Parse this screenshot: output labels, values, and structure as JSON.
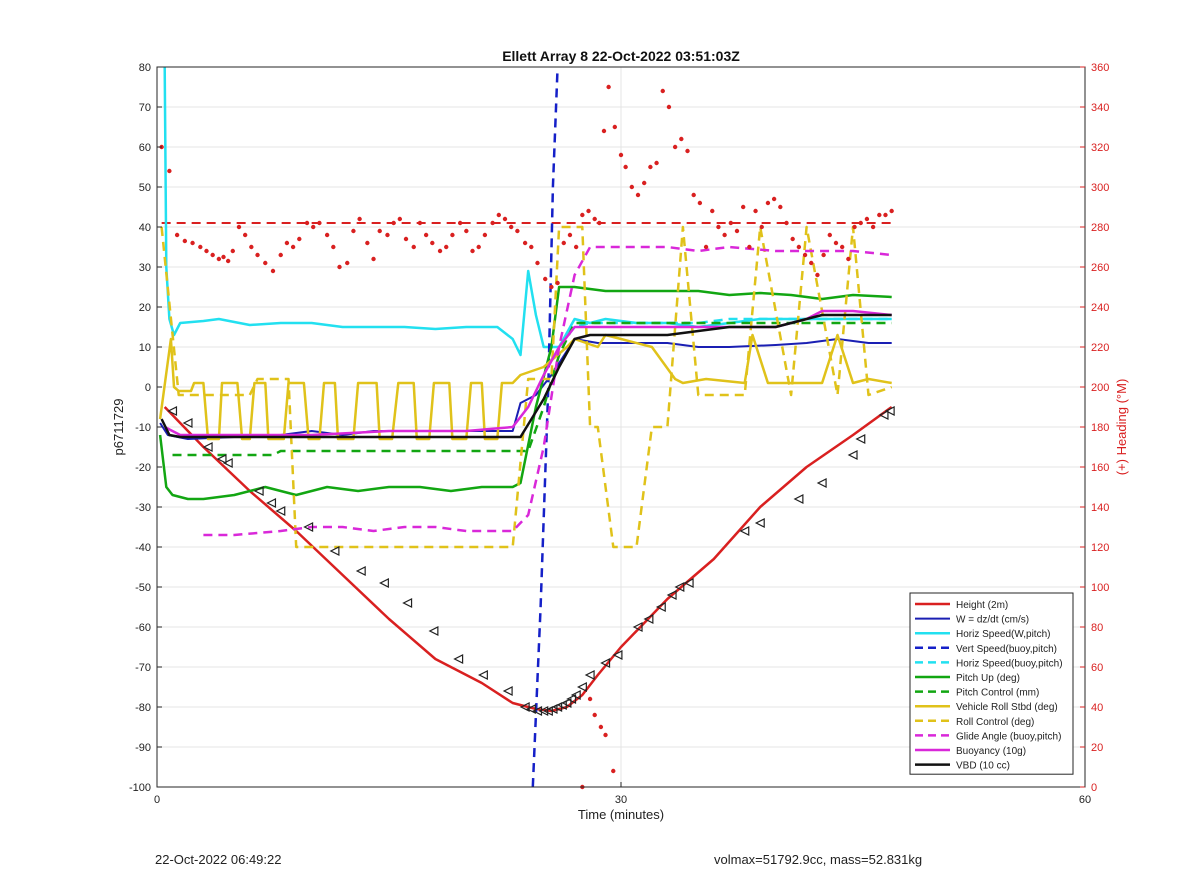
{
  "chart_data": {
    "type": "line",
    "title": "Ellett Array 8 22-Oct-2022 03:51:03Z",
    "xlabel": "Time (minutes)",
    "ylabel": "p6711729",
    "y2label": "(+) Heading (°M)",
    "xlim": [
      0,
      60
    ],
    "ylim": [
      -100,
      80
    ],
    "y2lim": [
      0,
      360
    ],
    "xticks": [
      0,
      30,
      60
    ],
    "yticks": [
      -100,
      -90,
      -80,
      -70,
      -60,
      -50,
      -40,
      -30,
      -20,
      -10,
      0,
      10,
      20,
      30,
      40,
      50,
      60,
      70,
      80
    ],
    "y2ticks": [
      0,
      20,
      40,
      60,
      80,
      100,
      120,
      140,
      160,
      180,
      200,
      220,
      240,
      260,
      280,
      300,
      320,
      340,
      360
    ],
    "grid": true,
    "legend_position": "bottom-right",
    "series": [
      {
        "name": "Height (2m)",
        "color": "#d92020",
        "style": "solid",
        "width": 2.5,
        "x": [
          0.5,
          3,
          6,
          9,
          12,
          15,
          18,
          21,
          23,
          24.5,
          25.5,
          26.5,
          27.5,
          28.5,
          30,
          33,
          36,
          39,
          42,
          45,
          47.5
        ],
        "y": [
          -5,
          -15,
          -26,
          -36,
          -47,
          -58,
          -68,
          -74,
          -79,
          -80.5,
          -81,
          -80,
          -77,
          -72,
          -65,
          -53,
          -43,
          -30,
          -20,
          -12,
          -5
        ]
      },
      {
        "name": "W = dz/dt (cm/s)",
        "color": "#1a1fb3",
        "style": "solid",
        "width": 2,
        "x": [
          0.2,
          0.7,
          2,
          5,
          8,
          10,
          12,
          14,
          16,
          18,
          20,
          23,
          23.5,
          24.5,
          25.5,
          27,
          28.5,
          30,
          33,
          35,
          37,
          40,
          42,
          44,
          46,
          47.5
        ],
        "y": [
          -9,
          -12,
          -13,
          -12.5,
          -12,
          -11,
          -12,
          -11,
          -11,
          -11,
          -11,
          -11,
          -4,
          -2,
          3,
          12,
          11,
          11,
          11,
          10,
          10,
          10.5,
          11,
          12,
          11,
          11
        ]
      },
      {
        "name": "Horiz Speed(W,pitch)",
        "color": "#22e0f0",
        "style": "solid",
        "width": 2.5,
        "x": [
          0.5,
          0.6,
          0.8,
          1.1,
          1.5,
          3,
          4,
          6,
          8,
          10,
          12,
          14,
          16,
          18,
          20,
          22,
          23,
          23.5,
          24,
          24.5,
          25,
          26,
          27,
          28,
          29,
          31,
          33,
          35,
          37,
          39,
          41,
          43,
          45,
          47.5
        ],
        "y": [
          80,
          30,
          17,
          13,
          16,
          16.5,
          17,
          15.5,
          16,
          16,
          15,
          15,
          15,
          14.5,
          15,
          15,
          12,
          8,
          29,
          18,
          10,
          10,
          17,
          16,
          17,
          16,
          16,
          15,
          16,
          17,
          17,
          17,
          17,
          17
        ]
      },
      {
        "name": "Vert Speed(buoy,pitch)",
        "color": "#1520c8",
        "style": "dash",
        "width": 2.5,
        "x": [
          24.3,
          24.8,
          25.3,
          25.6,
          25.9
        ],
        "y": [
          -100,
          -55,
          0,
          50,
          80
        ]
      },
      {
        "name": "Horiz Speed(buoy,pitch)",
        "color": "#22e0f0",
        "style": "dash",
        "width": 2.5,
        "x": [
          26,
          27,
          28,
          30,
          33,
          35,
          37,
          40,
          42,
          45,
          47.5
        ],
        "y": [
          10,
          15,
          16,
          16,
          16,
          16,
          17,
          17,
          17,
          17,
          17
        ]
      },
      {
        "name": "Pitch Up (deg)",
        "color": "#12a612",
        "style": "solid",
        "width": 2.5,
        "x": [
          0.2,
          0.6,
          1,
          2,
          3,
          4,
          5,
          7,
          9,
          11,
          13,
          15,
          17,
          19,
          21,
          23,
          23.5,
          24.5,
          25.5,
          26,
          27,
          29,
          31,
          33,
          35,
          37,
          39,
          41,
          43,
          45,
          47.5
        ],
        "y": [
          -12,
          -25,
          -27,
          -28,
          -28,
          -27.5,
          -27,
          -25,
          -27,
          -25,
          -26,
          -25,
          -25,
          -26,
          -25,
          -25,
          -24,
          -5,
          10,
          25,
          25,
          24,
          24,
          24,
          24,
          23,
          23.5,
          23,
          22,
          23,
          22.5
        ]
      },
      {
        "name": "Pitch Control (mm)",
        "color": "#12a612",
        "style": "dash",
        "width": 2.5,
        "x": [
          1,
          5,
          7.5,
          8,
          23,
          24,
          25,
          26,
          27,
          30,
          35,
          40,
          45,
          47.5
        ],
        "y": [
          -17,
          -17,
          -17,
          -16,
          -16,
          -16,
          -5,
          8,
          16,
          16,
          16,
          16,
          16,
          16
        ]
      },
      {
        "name": "Vehicle Roll Stbd (deg)",
        "color": "#e0c21a",
        "style": "solid",
        "width": 2.5,
        "x": [
          0.2,
          0.9,
          1.1,
          1.4,
          2.2,
          2.4,
          3.0,
          3.3,
          4.0,
          4.2,
          5.2,
          5.5,
          6.0,
          6.3,
          7.0,
          7.2,
          8.2,
          8.5,
          9.5,
          9.8,
          10.5,
          10.8,
          11.5,
          11.7,
          12.7,
          13.0,
          14.2,
          14.4,
          15.2,
          15.6,
          16.6,
          16.8,
          17.6,
          17.9,
          18.9,
          19.1,
          20.0,
          20.3,
          21.0,
          21.2,
          22.0,
          22.3,
          23.0,
          23.5,
          25.0,
          26.5,
          27.0,
          28.5,
          29.0,
          30.0,
          32.0,
          33.5,
          34.0,
          35.5,
          38.0,
          38.5,
          39.5,
          40.0,
          42.0,
          43.0,
          44.0,
          45.0,
          46.0,
          47.5
        ],
        "y": [
          -8,
          12,
          0,
          -1,
          -1,
          1,
          1,
          -13,
          -13,
          1,
          1,
          -13,
          -13,
          1,
          1,
          -13,
          -13,
          1,
          1,
          -13,
          -13,
          1,
          1,
          -13,
          -13,
          1,
          1,
          -13,
          -13,
          1,
          1,
          -13,
          -13,
          1,
          1,
          -13,
          -13,
          1,
          1,
          -13,
          -13,
          1,
          1,
          3,
          5,
          10,
          12,
          10,
          13,
          12,
          10,
          2,
          1,
          2,
          1,
          13,
          1,
          1,
          1,
          1,
          13,
          1,
          2,
          1
        ]
      },
      {
        "name": "Roll Control (deg)",
        "color": "#e0c21a",
        "style": "dash",
        "width": 2.5,
        "x": [
          0.3,
          1.4,
          2.0,
          6.0,
          6.5,
          8.5,
          9.0,
          23.0,
          24.0,
          25.5,
          26.0,
          27.5,
          28.0,
          28.5,
          29.5,
          31.0,
          32.0,
          33.0,
          34.0,
          35.0,
          38.0,
          39.0,
          41.0,
          42.0,
          44.0,
          45.0,
          46.0,
          47.5
        ],
        "y": [
          40,
          -2,
          -2,
          -2,
          2,
          2,
          -40,
          -40,
          2,
          2,
          40,
          40,
          -10,
          -10,
          -40,
          -40,
          -10,
          -10,
          40,
          -2,
          -2,
          40,
          -2,
          40,
          -2,
          40,
          -2,
          0
        ]
      },
      {
        "name": "Glide Angle (buoy,pitch)",
        "color": "#d928d9",
        "style": "dash",
        "width": 2.5,
        "x": [
          3,
          5,
          8,
          10,
          12,
          14,
          16,
          18,
          20,
          22,
          23,
          24,
          25,
          26,
          27,
          28,
          30,
          33,
          35,
          37,
          40,
          43,
          45,
          47.5
        ],
        "y": [
          -37,
          -37,
          -36,
          -35,
          -35,
          -36,
          -35,
          -35,
          -36,
          -36,
          -36,
          -32,
          -15,
          10,
          28,
          35,
          35,
          35,
          34,
          35,
          34,
          34,
          34,
          33
        ]
      },
      {
        "name": "Buoyancy (10g)",
        "color": "#d928d9",
        "style": "solid",
        "width": 2.5,
        "x": [
          0.5,
          1.5,
          5,
          10,
          15,
          20,
          23,
          24,
          25,
          26,
          27,
          28,
          30,
          33,
          35,
          37,
          40,
          42,
          43,
          45,
          47.5
        ],
        "y": [
          -10,
          -12,
          -12,
          -12,
          -11,
          -11,
          -10,
          -5,
          3,
          10,
          15,
          15,
          15,
          15,
          15,
          15,
          15,
          17,
          19,
          19,
          18
        ]
      },
      {
        "name": "VBD (10 cc)",
        "color": "#111111",
        "style": "solid",
        "width": 2.5,
        "x": [
          0.3,
          0.8,
          1.5,
          3,
          10,
          15,
          20,
          22,
          23.5,
          25,
          26,
          27,
          28,
          30,
          33,
          35,
          37,
          39,
          40,
          41,
          42,
          43,
          45,
          47.5
        ],
        "y": [
          -8,
          -12,
          -12.5,
          -12.5,
          -12.5,
          -12.5,
          -12.5,
          -12.5,
          -12.5,
          -3,
          5,
          12,
          13,
          13,
          13,
          14,
          15,
          15,
          15,
          16,
          17,
          18,
          18,
          18
        ]
      }
    ],
    "heading_reference": {
      "y2": 282,
      "color": "#d92020",
      "style": "dash"
    },
    "heading_points": {
      "color": "#d92020",
      "x": [
        0.3,
        0.8,
        1.3,
        1.8,
        2.3,
        2.8,
        3.2,
        3.6,
        4.0,
        4.3,
        4.6,
        4.9,
        5.3,
        5.7,
        6.1,
        6.5,
        7.0,
        7.5,
        8.0,
        8.4,
        8.8,
        9.2,
        9.7,
        10.1,
        10.5,
        11.0,
        11.4,
        11.8,
        12.3,
        12.7,
        13.1,
        13.6,
        14.0,
        14.4,
        14.9,
        15.3,
        15.7,
        16.1,
        16.6,
        17.0,
        17.4,
        17.8,
        18.3,
        18.7,
        19.1,
        19.6,
        20.0,
        20.4,
        20.8,
        21.2,
        21.7,
        22.1,
        22.5,
        22.9,
        23.3,
        23.8,
        24.2,
        24.6,
        25.1,
        25.5,
        25.9,
        26.3,
        26.7,
        27.1,
        27.5,
        27.9,
        28.3,
        28.6,
        28.9,
        29.2,
        29.6,
        30.0,
        30.3,
        30.7,
        31.1,
        31.5,
        31.9,
        32.3,
        32.7,
        33.1,
        33.5,
        33.9,
        34.3,
        34.7,
        35.1,
        35.5,
        35.9,
        36.3,
        36.7,
        37.1,
        37.5,
        37.9,
        38.3,
        38.7,
        39.1,
        39.5,
        39.9,
        40.3,
        40.7,
        41.1,
        41.5,
        41.9,
        42.3,
        42.7,
        43.1,
        43.5,
        43.9,
        44.3,
        44.7,
        45.1,
        45.5,
        45.9,
        46.3,
        46.7,
        47.1,
        47.5
      ],
      "y": [
        320,
        308,
        276,
        273,
        272,
        270,
        268,
        266,
        264,
        265,
        263,
        268,
        280,
        276,
        270,
        266,
        262,
        258,
        266,
        272,
        270,
        274,
        282,
        280,
        282,
        276,
        270,
        260,
        262,
        278,
        284,
        272,
        264,
        278,
        276,
        282,
        284,
        274,
        270,
        282,
        276,
        272,
        268,
        270,
        276,
        282,
        278,
        268,
        270,
        276,
        282,
        286,
        284,
        280,
        278,
        272,
        270,
        262,
        254,
        250,
        252,
        272,
        276,
        270,
        286,
        288,
        284,
        282,
        328,
        350,
        330,
        316,
        310,
        300,
        296,
        302,
        310,
        312,
        348,
        340,
        320,
        324,
        318,
        296,
        292,
        270,
        288,
        280,
        276,
        282,
        278,
        290,
        270,
        288,
        280,
        292,
        294,
        290,
        282,
        274,
        270,
        266,
        262,
        256,
        266,
        276,
        272,
        270,
        264,
        280,
        282,
        284,
        280,
        286,
        286,
        288
      ],
      "low_x": [
        27.5,
        28.0,
        28.3,
        28.7,
        29.0,
        29.5
      ],
      "low_y2": [
        0,
        44,
        36,
        30,
        26,
        8
      ]
    },
    "markers": {
      "style": "triangle",
      "color": "#222222",
      "x": [
        1,
        2,
        3.3,
        4.2,
        4.6,
        6.6,
        7.4,
        8.0,
        9.8,
        11.5,
        13.2,
        14.7,
        16.2,
        17.9,
        19.5,
        21.1,
        22.7,
        23.8,
        24.2,
        24.6,
        25.0,
        25.3,
        25.6,
        25.9,
        26.2,
        26.5,
        26.8,
        27.1,
        27.5,
        28.0,
        29.0,
        29.8,
        31.1,
        31.8,
        32.6,
        33.3,
        33.8,
        34.4,
        38.0,
        39.0,
        41.5,
        43.0,
        45.0,
        45.5,
        47.0,
        47.4
      ],
      "y": [
        -6,
        -9,
        -15,
        -18,
        -19,
        -26,
        -29,
        -31,
        -35,
        -41,
        -46,
        -49,
        -54,
        -61,
        -68,
        -72,
        -76,
        -80,
        -80.5,
        -81,
        -81,
        -81,
        -80.5,
        -80,
        -79.5,
        -79,
        -78,
        -77,
        -75,
        -72,
        -69,
        -67,
        -60,
        -58,
        -55,
        -52,
        -50,
        -49,
        -36,
        -34,
        -28,
        -24,
        -17,
        -13,
        -7,
        -6
      ]
    }
  },
  "footer": {
    "left": "22-Oct-2022 06:49:22",
    "right": "volmax=51792.9cc, mass=52.831kg"
  }
}
